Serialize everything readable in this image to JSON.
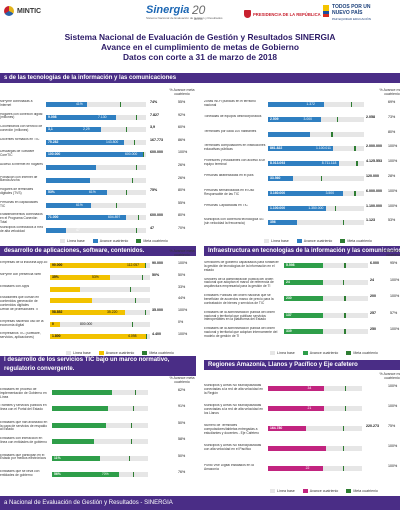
{
  "logos": {
    "mintic": "MINTIC",
    "sinergia": "Sinergia",
    "sinergia_sub": "Sistema Nacional de Evaluación de Gestión y Resultados",
    "twenty": "20",
    "twenty_sub": "años",
    "presidencia": "PRESIDENCIA DE LA REPÚBLICA",
    "pais_line1": "TODOS POR UN",
    "pais_line2": "NUEVO PAÍS",
    "pais_line3": "PAZ EQUIDAD EDUCACIÓN"
  },
  "title": {
    "line1": "Sistema Nacional de Evaluación de Gestión y Resultados SINERGIA",
    "line2": "Avance en el cumplimiento de metas de Gobierno",
    "line3": "Datos con corte a 31 de marzo de 2018"
  },
  "colors": {
    "blue_fill": "#2f7fc1",
    "green_fill": "#2e9e49",
    "yellow_fill": "#f2c200",
    "magenta_fill": "#c2247f",
    "section": "#4a2d86"
  },
  "sections": [
    {
      "title": "s de las tecnologías de la información y las comunicaciones",
      "col_head": "% Avance meta cuatrienio",
      "fill_color": "#2f7fc1",
      "rows": [
        {
          "label": "MiPyme conectadas a Internet",
          "base": "",
          "avance": "41%",
          "meta_pct": 0.74,
          "fill": 0.41,
          "meta": "74%",
          "pct": "55%"
        },
        {
          "label": "Hogares con conexión digital (millones)",
          "base": "9.098",
          "avance": "7.130",
          "meta_pct": 0.9,
          "fill": 0.7,
          "meta": "7.827",
          "pct": "92%"
        },
        {
          "label": "Colombianos con servicio de conexión (millones)",
          "base": "3,1",
          "avance": "2,29",
          "meta_pct": 0.8,
          "fill": 0.55,
          "meta": "3,9",
          "pct": "60%"
        },
        {
          "label": "Docentes formados en TIC",
          "base": "75.282",
          "avance": "143.800",
          "meta_pct": 0.88,
          "fill": 0.78,
          "meta": "167.773",
          "pct": "86%"
        },
        {
          "label": "Descargas de Software CoreTIC",
          "base": "100.000",
          "avance": "600.000",
          "meta_pct": 0.97,
          "fill": 0.97,
          "meta": "600.000",
          "pct": "100%"
        },
        {
          "label": "Acceso a internet en hogares",
          "base": "",
          "avance": "",
          "meta_pct": 0.9,
          "fill": 0.5,
          "meta": "",
          "pct": "26%"
        },
        {
          "label": "Población con Internet de Banda Ancha",
          "base": "",
          "avance": "",
          "meta_pct": 0.86,
          "fill": 0.44,
          "meta": "",
          "pct": "26%"
        },
        {
          "label": "Hogares de terminales digitales (TVS)",
          "base": "53%",
          "avance": "61%",
          "meta_pct": 0.8,
          "fill": 0.61,
          "meta": "75%",
          "pct": "80%"
        },
        {
          "label": "Personas en capacidades TIC",
          "base": "",
          "avance": "61%",
          "meta_pct": 0.7,
          "fill": 0.45,
          "meta": "",
          "pct": "55%"
        },
        {
          "label": "Establecimientos conectados en el Programa Conexión Total",
          "base": "71.000",
          "avance": "604.897",
          "meta_pct": 0.92,
          "fill": 0.8,
          "meta": "600.000",
          "pct": "80%"
        },
        {
          "label": "Municipios conectados a Red de alta velocidad",
          "base": "",
          "avance": "47",
          "meta_pct": 0.9,
          "fill": 0.2,
          "meta": "47",
          "pct": "70%"
        }
      ]
    },
    {
      "title": "Infraestructura de TIC",
      "col_head": "% Avance meta cuatrienio",
      "fill_color": "#2f7fc1",
      "rows": [
        {
          "label": "Zonas Wi-Fi públicas en el territorio nacional",
          "base": "",
          "avance": "1.372",
          "meta_pct": 0.86,
          "fill": 0.58,
          "meta": "",
          "pct": "69%"
        },
        {
          "label": "Toneladas de equipos desincorporados",
          "base": "2.509",
          "avance": "3.000",
          "meta_pct": 0.72,
          "fill": 0.55,
          "meta": "2.058",
          "pct": "73%"
        },
        {
          "label": "Terminales por cada 100 habitantes",
          "base": "",
          "avance": "",
          "meta_pct": 0.66,
          "fill": 0.44,
          "meta": "",
          "pct": "80%"
        },
        {
          "label": "Terminales computadores en instituciones educativas públicas",
          "base": "861.822",
          "avance": "1.100.011",
          "meta_pct": 0.9,
          "fill": 0.68,
          "meta": "2.000.000",
          "pct": "100%"
        },
        {
          "label": "Profesores y estudiantes con acceso a un equipo terminal",
          "base": "8.013.093",
          "avance": "8.711.118",
          "meta_pct": 0.92,
          "fill": 0.74,
          "meta": "4.125.553",
          "pct": "100%"
        },
        {
          "label": "Personas alfabetizadas en el país",
          "base": "33.560",
          "avance": "",
          "meta_pct": 0.55,
          "fill": 0.26,
          "meta": "120.000",
          "pct": "28%"
        },
        {
          "label": "Personas sensibilizadas en el Uso Responsable de las TIC",
          "base": "3.160.000",
          "avance": "3.500",
          "meta_pct": 0.9,
          "fill": 0.78,
          "meta": "6.000.000",
          "pct": "100%"
        },
        {
          "label": "Personas Capacitadas en TIC",
          "base": "1.100.000",
          "avance": "1.350.000",
          "meta_pct": 0.7,
          "fill": 0.6,
          "meta": "1.100.000",
          "pct": "100%"
        },
        {
          "label": "Municipios con cobertura tecnológica 4G (sin velocidad la frecuencia)",
          "base": "356",
          "avance": "",
          "meta_pct": 0.78,
          "fill": 0.3,
          "meta": "1.123",
          "pct": "53%"
        }
      ]
    },
    {
      "title": "desarrollo de aplicaciones, software, contenidos.",
      "col_head": "% Avance meta cuatrienio",
      "fill_color": "#f2c200",
      "rows": [
        {
          "label": "Empresas de la industria App.co",
          "base": "90.000",
          "avance": "112.057",
          "meta_pct": 0.95,
          "fill": 0.95,
          "meta": "90.000",
          "pct": "100%"
        },
        {
          "label": "MiPyme con presencia Web",
          "base": "35%",
          "avance": "53%",
          "meta_pct": 0.92,
          "fill": 0.6,
          "meta": "50%",
          "pct": "50%"
        },
        {
          "label": "Entidades con Apps",
          "base": "",
          "avance": "",
          "meta_pct": 0.8,
          "fill": 0.3,
          "meta": "",
          "pct": "33%"
        },
        {
          "label": "Estudiantes que cursan en contenidos generación de contenidos digitales",
          "base": "",
          "avance": "",
          "meta_pct": 0.85,
          "fill": 0.42,
          "meta": "",
          "pct": "44%"
        },
        {
          "label": "Déficit de profesionales TI",
          "base": "58.852",
          "avance": "35.220",
          "meta_pct": 0.95,
          "fill": 0.75,
          "meta": "35.000",
          "pct": "100%"
        },
        {
          "label": "Empresas haciendo uso de la economía digital",
          "base": "0",
          "avance": "800.000",
          "meta_pct": 0.82,
          "fill": 0.1,
          "meta": "",
          "pct": "0%"
        },
        {
          "label": "Empresarios TIC (Software, servicios, aplicaciones)",
          "base": "1.800",
          "avance": "4.098",
          "meta_pct": 0.96,
          "fill": 0.96,
          "meta": "4.400",
          "pct": "100%"
        }
      ]
    },
    {
      "title": "Infraestructura en tecnologías de la información y las comunicaciones",
      "col_head": "% Avance meta cuatrienio",
      "fill_color": "#2e9e49",
      "rows": [
        {
          "label": "Servidores de gobierno capacitados para fortalecer la gestión de tecnologías de la información en el estado",
          "base": "5.598",
          "avance": "",
          "meta_pct": 0.72,
          "fill": 0.46,
          "meta": "6.000",
          "pct": "95%"
        },
        {
          "label": "Sectores de la administración pública del orden nacional que adoptan el marco de referencia de arquitectura empresarial para la gestión de TI",
          "base": "24",
          "avance": "",
          "meta_pct": 0.7,
          "fill": 0.46,
          "meta": "24",
          "pct": "100%"
        },
        {
          "label": "Entidades Públicas del orden nacional que se benefician de acuerdos marco de precio para la contratación de bienes y servicios de TIC",
          "base": "230",
          "avance": "",
          "meta_pct": 0.72,
          "fill": 0.46,
          "meta": "200",
          "pct": "100%"
        },
        {
          "label": "Entidades de la administración pública del orden nacional y territorial que publican servicios interoperables en la plataforma del Estado",
          "base": "137",
          "avance": "",
          "meta_pct": 0.72,
          "fill": 0.46,
          "meta": "257",
          "pct": "57%"
        },
        {
          "label": "Entidades de la administración pública del orden nacional y territorial que adoptan internamente del modelo de gestión de TI",
          "base": "339",
          "avance": "",
          "meta_pct": 0.72,
          "fill": 0.46,
          "meta": "250",
          "pct": "100%"
        }
      ]
    },
    {
      "title": "l desarrollo de los servicios TIC bajo un marco normativo, regulatorio convergente.",
      "col_head": "% Avance meta cuatrienio",
      "fill_color": "#2e9e49",
      "rows": [
        {
          "label": "Entidades en proceso de implementación de Gobierno en Línea",
          "base": "",
          "avance": "",
          "meta_pct": 0.86,
          "fill": 0.62,
          "meta": "",
          "pct": "62%"
        },
        {
          "label": "Trámites y servicios públicos en línea con el Portal del Estado",
          "base": "",
          "avance": "",
          "meta_pct": 0.84,
          "fill": 0.58,
          "meta": "",
          "pct": "91%"
        },
        {
          "label": "Entidades que han avanzado en la capa de servicios de respaldo al Estado",
          "base": "",
          "avance": "",
          "meta_pct": 0.82,
          "fill": 0.56,
          "meta": "",
          "pct": "50%"
        },
        {
          "label": "Entidades con interacción en línea con entidades de gobierno",
          "base": "",
          "avance": "",
          "meta_pct": 0.82,
          "fill": 0.44,
          "meta": "",
          "pct": "58%"
        },
        {
          "label": "Entidades que participan en el Estado por medios electrónicos",
          "base": "11%",
          "avance": "",
          "meta_pct": 0.8,
          "fill": 0.5,
          "meta": "",
          "pct": "50%"
        },
        {
          "label": "Entidades que se lleva con entidades de gobierno",
          "base": "56%",
          "avance": "70%",
          "meta_pct": 0.84,
          "fill": 0.7,
          "meta": "",
          "pct": "76%"
        }
      ]
    },
    {
      "title": "Regiones Amazonía, Llanos y Pacífico y Eje cafetero",
      "col_head": "% Avance meta cuatrienio",
      "fill_color": "#c2247f",
      "rows": [
        {
          "label": "Municipios y Áreas No Municipalizadas conectadas a la red de alta velocidad en la Región",
          "base": "",
          "avance": "34",
          "meta_pct": 0.82,
          "fill": 0.6,
          "meta": "",
          "pct": "100%"
        },
        {
          "label": "Municipios y Áreas No Municipalizadas conectadas a la red de alta velocidad en los Llanos",
          "base": "",
          "avance": "21",
          "meta_pct": 0.82,
          "fill": 0.6,
          "meta": "",
          "pct": "100%"
        },
        {
          "label": "Número de Terminales computadores/tabletas entregadas a estudiantes y docentes - Eje Cafetero",
          "base": "164.780",
          "avance": "",
          "meta_pct": 0.8,
          "fill": 0.4,
          "meta": "220.273",
          "pct": "75%"
        },
        {
          "label": "Municipios y Áreas No Municipalizadas con alta velocidad en el Pacífico",
          "base": "",
          "avance": "",
          "meta_pct": 0.8,
          "fill": 0.62,
          "meta": "",
          "pct": "100%"
        },
        {
          "label": "Punto Vive Digital instalados en la Amazonía",
          "base": "",
          "avance": "22",
          "meta_pct": 0.8,
          "fill": 0.58,
          "meta": "",
          "pct": "100%"
        }
      ]
    }
  ],
  "legend": {
    "base": "Línea base",
    "avance": "Avance cuatrienio",
    "meta": "Meta cuatrienio"
  },
  "footer": "a Nacional de Evaluación de Gestión y Resultados - SINERGIA"
}
